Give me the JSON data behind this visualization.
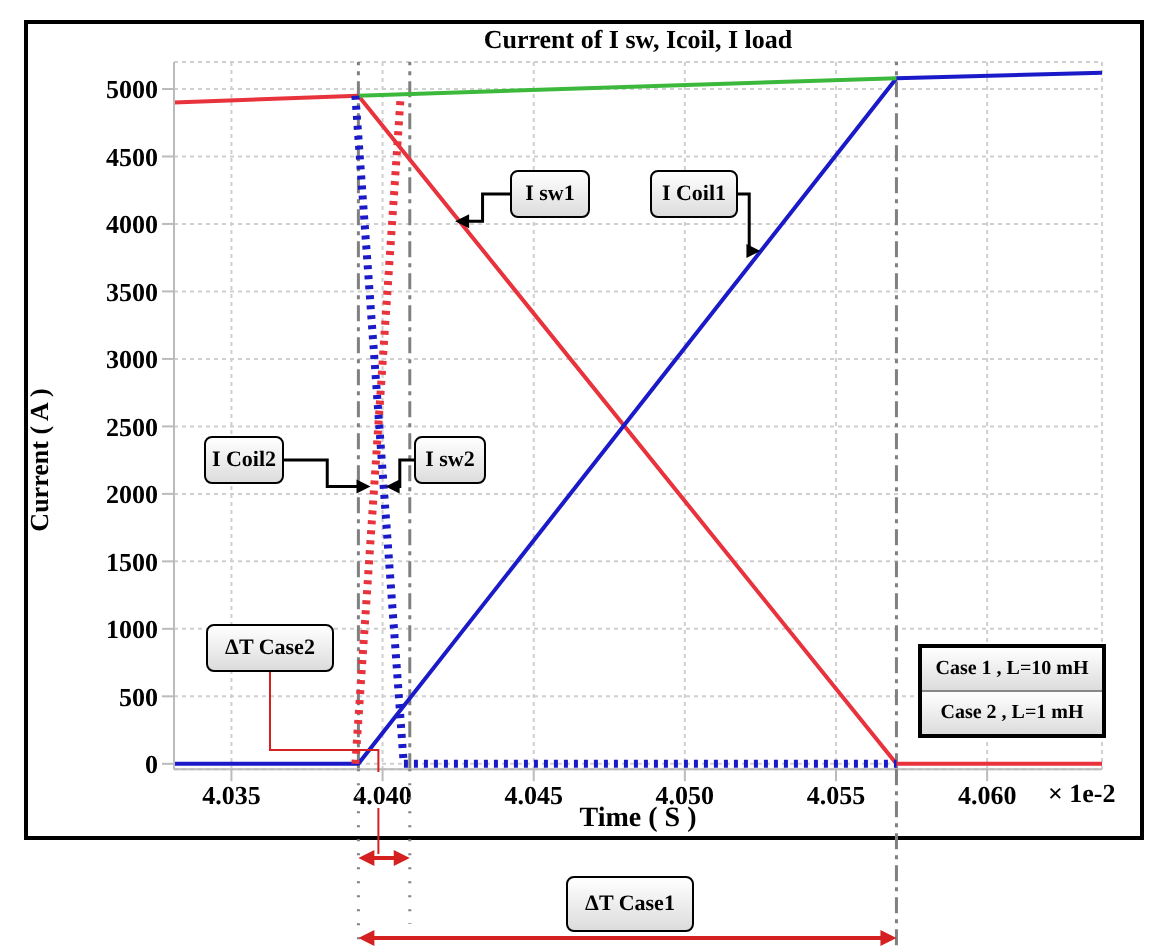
{
  "chart_data": {
    "type": "line",
    "title": "Current of I sw, Icoil, I load",
    "xlabel": "Time ( S )",
    "ylabel": "Current ( A )",
    "xlim": [
      4.0331,
      4.0638
    ],
    "ylim": [
      -40,
      5200
    ],
    "xticks": [
      4.035,
      {
        "value": 4.04,
        "label": "4.040"
      },
      4.045,
      {
        "value": 4.05,
        "label": "4.050"
      },
      4.055,
      {
        "value": 4.06,
        "label": "4.060"
      }
    ],
    "yticks": [
      0,
      500,
      1000,
      1500,
      2000,
      2500,
      3000,
      3500,
      4000,
      4500,
      5000
    ],
    "grid": true,
    "marker": "none",
    "series": [
      {
        "color": "#e8323c",
        "line_style": "solid",
        "x": [
          4.0331,
          4.0392,
          4.057,
          4.0638
        ],
        "values": [
          4900,
          4950,
          0,
          0
        ]
      },
      {
        "color": "#1a1ac8",
        "line_style": "solid",
        "x": [
          4.0331,
          4.0392,
          4.057,
          4.0638
        ],
        "values": [
          0,
          0,
          5080,
          5120
        ]
      },
      {
        "color": "#3cb93c",
        "line_style": "solid",
        "x": [
          4.0392,
          4.057
        ],
        "values": [
          4950,
          5080
        ]
      },
      {
        "color": "#e8323c",
        "line_style": "dotted",
        "x": [
          4.0391,
          4.0406
        ],
        "values": [
          0,
          4950
        ]
      },
      {
        "color": "#1a1ac8",
        "line_style": "dotted",
        "x": [
          4.0391,
          4.0407,
          4.057
        ],
        "values": [
          4950,
          0,
          0
        ]
      }
    ],
    "ref_lines": [
      {
        "axis": "x",
        "value": 4.0392,
        "color": "#808080",
        "line_style": "dashed"
      },
      {
        "axis": "x",
        "value": 4.0409,
        "color": "#808080",
        "line_style": "dashed"
      },
      {
        "axis": "x",
        "value": 4.057,
        "color": "#808080",
        "line_style": "dashed"
      }
    ],
    "annotations": [
      {
        "text": "I sw1",
        "x": 4.0424,
        "y": 4020
      },
      {
        "text": "I Coil1",
        "x": 4.0525,
        "y": 3800
      },
      {
        "text": "I Coil2",
        "x": 4.0396,
        "y": 2055
      },
      {
        "text": "I sw2",
        "x": 4.0401,
        "y": 2055
      },
      "ΔT Case2",
      "ΔT Case1",
      "Case 1 , L=10 mH",
      "Case 2 , L=1 mH",
      "× 1e-2"
    ]
  }
}
